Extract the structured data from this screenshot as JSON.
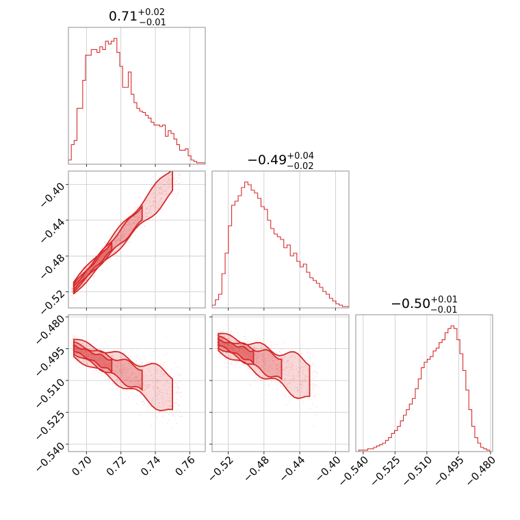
{
  "chart_data": {
    "type": "corner",
    "color": "#d62728",
    "parameters": [
      {
        "title_median": "0.71",
        "title_plus": "+0.02",
        "title_minus": "−0.01",
        "range": [
          0.6895,
          0.769
        ],
        "ticks": [
          0.7,
          0.72,
          0.74,
          0.76
        ],
        "tick_labels": [
          "0.70",
          "0.72",
          "0.74",
          "0.76"
        ],
        "hist_values": [
          3,
          14,
          17,
          40,
          40,
          60,
          78,
          78,
          82,
          82,
          80,
          84,
          82,
          88,
          86,
          88,
          90,
          80,
          70,
          55,
          55,
          66,
          50,
          44,
          40,
          38,
          37,
          35,
          33,
          30,
          28,
          28,
          27,
          28,
          20,
          24,
          22,
          18,
          14,
          10,
          10,
          11,
          6,
          3,
          2,
          1,
          1,
          1
        ],
        "hist_max": 93
      },
      {
        "title_median": "−0.49",
        "title_plus": "+0.04",
        "title_minus": "−0.02",
        "range": [
          -0.538,
          -0.385
        ],
        "ticks": [
          -0.52,
          -0.48,
          -0.44,
          -0.4
        ],
        "tick_labels": [
          "−0.52",
          "−0.48",
          "−0.44",
          "−0.40"
        ],
        "hist_values": [
          2,
          6,
          10,
          25,
          40,
          60,
          75,
          78,
          82,
          88,
          92,
          90,
          86,
          84,
          80,
          74,
          72,
          64,
          58,
          54,
          52,
          50,
          44,
          46,
          38,
          40,
          34,
          30,
          32,
          26,
          22,
          20,
          18,
          15,
          12,
          10,
          7,
          5,
          3,
          2,
          1,
          1
        ],
        "hist_max": 95
      },
      {
        "title_median": "−0.50",
        "title_plus": "+0.01",
        "title_minus": "−0.01",
        "range": [
          -0.5435,
          -0.479
        ],
        "ticks": [
          -0.54,
          -0.525,
          -0.51,
          -0.495,
          -0.48
        ],
        "tick_labels": [
          "−0.540",
          "−0.525",
          "−0.510",
          "−0.495",
          "−0.480"
        ],
        "hist_values": [
          0,
          1,
          1,
          1,
          2,
          2,
          3,
          4,
          5,
          6,
          8,
          10,
          13,
          15,
          18,
          22,
          26,
          30,
          34,
          38,
          45,
          52,
          60,
          64,
          66,
          68,
          72,
          74,
          78,
          80,
          85,
          88,
          90,
          88,
          80,
          70,
          58,
          44,
          30,
          18,
          10,
          6,
          3,
          2,
          1,
          0
        ],
        "hist_max": 93
      }
    ],
    "pairs": [
      {
        "row": 1,
        "col": 0,
        "relation": {
          "type": "linear",
          "slope": 2.1,
          "intercept": -1.97,
          "noise": 0.004
        },
        "center": [
          0.715,
          -0.4685
        ],
        "x_span": [
          0.692,
          0.755
        ]
      },
      {
        "row": 2,
        "col": 0,
        "relation": {
          "type": "linear",
          "slope": -0.38,
          "intercept": -0.2315,
          "noise": 0.0025
        },
        "center": [
          0.715,
          -0.503
        ],
        "x_span": [
          0.692,
          0.755
        ]
      },
      {
        "row": 2,
        "col": 1,
        "relation": {
          "type": "linear",
          "slope": -0.18,
          "intercept": -0.5875,
          "noise": 0.0025
        },
        "center": [
          -0.49,
          -0.5035
        ],
        "x_span": [
          -0.532,
          -0.42
        ]
      }
    ]
  }
}
